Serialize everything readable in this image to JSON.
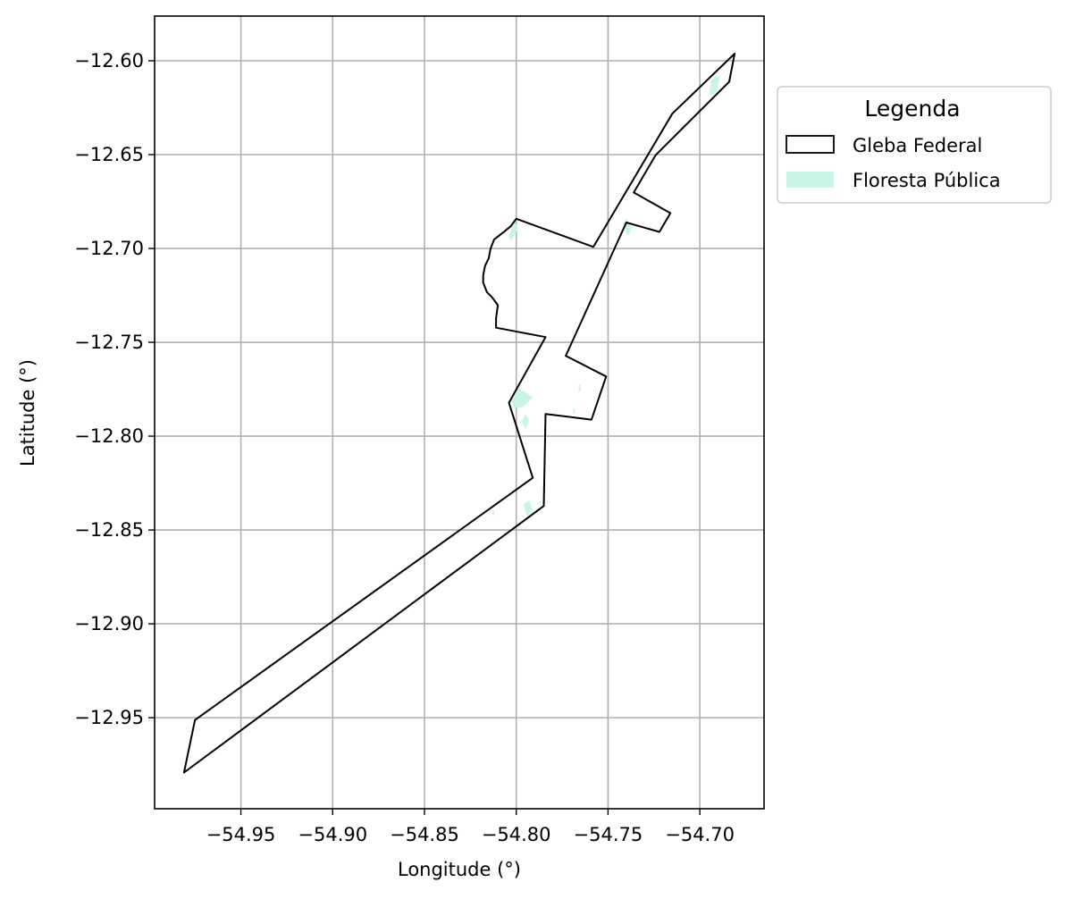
{
  "chart_data": {
    "type": "map",
    "xlabel": "Longitude (°)",
    "ylabel": "Latitude (°)",
    "xlim": [
      -54.997,
      -54.665
    ],
    "ylim": [
      -12.9985,
      -12.5762
    ],
    "xticks": [
      -54.95,
      -54.9,
      -54.85,
      -54.8,
      -54.75,
      -54.7
    ],
    "xtick_labels": [
      "−54.95",
      "−54.90",
      "−54.85",
      "−54.80",
      "−54.75",
      "−54.70"
    ],
    "yticks": [
      -12.6,
      -12.65,
      -12.7,
      -12.75,
      -12.8,
      -12.85,
      -12.9,
      -12.95
    ],
    "ytick_labels": [
      "−12.60",
      "−12.65",
      "−12.70",
      "−12.75",
      "−12.80",
      "−12.85",
      "−12.90",
      "−12.95"
    ],
    "grid": true,
    "legend": {
      "title": "Legenda",
      "placement": "outside-right-top",
      "entries": [
        {
          "label": "Gleba Federal",
          "style": "outline",
          "color": "#000000"
        },
        {
          "label": "Floresta Pública",
          "style": "fill",
          "color": "#c8f5e8"
        }
      ]
    },
    "series": [
      {
        "name": "Gleba Federal",
        "kind": "polygon",
        "stroke": "#000000",
        "points": [
          [
            -54.681,
            -12.5962
          ],
          [
            -54.684,
            -12.6112
          ],
          [
            -54.724,
            -12.6502
          ],
          [
            -54.736,
            -12.6702
          ],
          [
            -54.716,
            -12.6812
          ],
          [
            -54.722,
            -12.6912
          ],
          [
            -54.74,
            -12.6862
          ],
          [
            -54.773,
            -12.7572
          ],
          [
            -54.751,
            -12.7682
          ],
          [
            -54.759,
            -12.7912
          ],
          [
            -54.784,
            -12.7882
          ],
          [
            -54.785,
            -12.8372
          ],
          [
            -54.981,
            -12.9792
          ],
          [
            -54.975,
            -12.9512
          ],
          [
            -54.791,
            -12.8222
          ],
          [
            -54.804,
            -12.7822
          ],
          [
            -54.784,
            -12.7472
          ],
          [
            -54.811,
            -12.7422
          ],
          [
            -54.811,
            -12.7372
          ],
          [
            -54.81,
            -12.7302
          ],
          [
            -54.813,
            -12.7262
          ],
          [
            -54.816,
            -12.7232
          ],
          [
            -54.818,
            -12.7182
          ],
          [
            -54.818,
            -12.7142
          ],
          [
            -54.817,
            -12.7092
          ],
          [
            -54.815,
            -12.7052
          ],
          [
            -54.814,
            -12.7002
          ],
          [
            -54.812,
            -12.6952
          ],
          [
            -54.808,
            -12.6922
          ],
          [
            -54.803,
            -12.6882
          ],
          [
            -54.8,
            -12.6842
          ],
          [
            -54.758,
            -12.6992
          ],
          [
            -54.715,
            -12.6282
          ]
        ]
      },
      {
        "name": "Floresta Pública",
        "kind": "patches",
        "fill": "#c8f5e8",
        "patches": [
          [
            [
              -54.692,
              -12.6082
            ],
            [
              -54.689,
              -12.6082
            ],
            [
              -54.691,
              -12.6172
            ],
            [
              -54.695,
              -12.6182
            ],
            [
              -54.694,
              -12.6112
            ]
          ],
          [
            [
              -54.804,
              -12.6932
            ],
            [
              -54.801,
              -12.6852
            ],
            [
              -54.799,
              -12.6892
            ],
            [
              -54.803,
              -12.6962
            ]
          ],
          [
            [
              -54.74,
              -12.6842
            ],
            [
              -54.742,
              -12.6872
            ],
            [
              -54.739,
              -12.6932
            ],
            [
              -54.737,
              -12.6892
            ]
          ],
          [
            [
              -54.803,
              -12.7792
            ],
            [
              -54.799,
              -12.7742
            ],
            [
              -54.794,
              -12.7772
            ],
            [
              -54.791,
              -12.7792
            ],
            [
              -54.796,
              -12.7842
            ],
            [
              -54.801,
              -12.7852
            ]
          ],
          [
            [
              -54.795,
              -12.7882
            ],
            [
              -54.793,
              -12.7912
            ],
            [
              -54.795,
              -12.7962
            ],
            [
              -54.797,
              -12.7922
            ]
          ],
          [
            [
              -54.796,
              -12.8362
            ],
            [
              -54.793,
              -12.8342
            ],
            [
              -54.791,
              -12.8392
            ],
            [
              -54.794,
              -12.8432
            ]
          ],
          [
            [
              -54.813,
              -12.8392
            ],
            [
              -54.812,
              -12.8392
            ],
            [
              -54.812,
              -12.8422
            ],
            [
              -54.813,
              -12.8422
            ]
          ],
          [
            [
              -54.766,
              -12.7722
            ],
            [
              -54.765,
              -12.7722
            ],
            [
              -54.765,
              -12.7762
            ],
            [
              -54.766,
              -12.7762
            ]
          ],
          [
            [
              -54.769,
              -12.7852
            ],
            [
              -54.768,
              -12.7852
            ],
            [
              -54.768,
              -12.7882
            ],
            [
              -54.769,
              -12.7882
            ]
          ]
        ]
      }
    ]
  }
}
